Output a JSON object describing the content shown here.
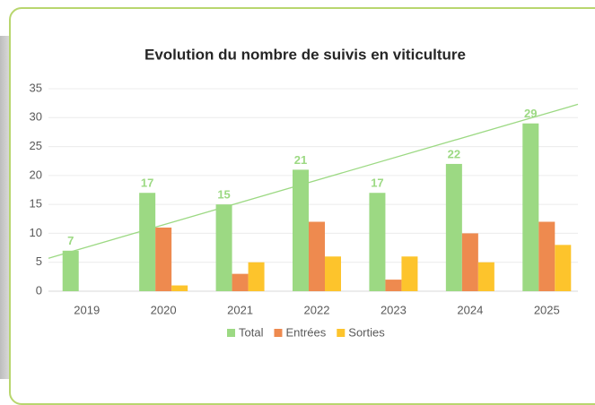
{
  "chart_data": {
    "type": "bar",
    "title": "Evolution du nombre de suivis en viticulture",
    "categories": [
      "2019",
      "2020",
      "2021",
      "2022",
      "2023",
      "2024",
      "2025"
    ],
    "series": [
      {
        "name": "Total",
        "color": "#9cd983",
        "values": [
          7,
          17,
          15,
          21,
          17,
          22,
          29
        ]
      },
      {
        "name": "Entrées",
        "color": "#ee8a4f",
        "values": [
          0,
          11,
          3,
          12,
          2,
          10,
          12
        ]
      },
      {
        "name": "Sorties",
        "color": "#fdc42c",
        "values": [
          0,
          1,
          5,
          6,
          6,
          5,
          8
        ]
      }
    ],
    "label_series": 0,
    "trendline": {
      "color": "#9cd983",
      "values": [
        5.7,
        32.3
      ]
    },
    "ylim": [
      0,
      35
    ],
    "yticks": [
      0,
      5,
      10,
      15,
      20,
      25,
      30,
      35
    ],
    "grid": true,
    "legend": "bottom"
  }
}
